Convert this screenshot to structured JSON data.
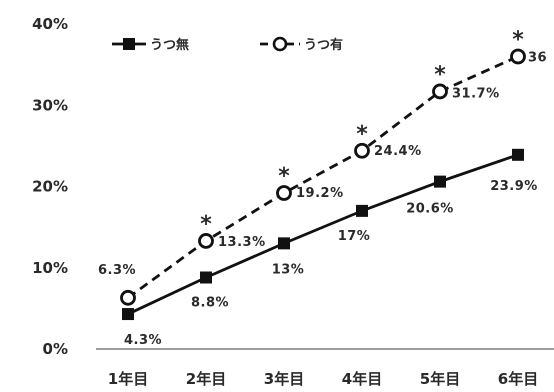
{
  "chart_data": {
    "type": "line",
    "categories": [
      "1年目",
      "2年目",
      "3年目",
      "4年目",
      "5年目",
      "6年目"
    ],
    "series": [
      {
        "name": "うつ無",
        "values": [
          4.3,
          8.8,
          13,
          17,
          20.6,
          23.9
        ],
        "labels": [
          "4.3%",
          "8.8%",
          "13%",
          "17%",
          "20.6%",
          "23.9%"
        ],
        "style": "solid",
        "marker": "filled-square"
      },
      {
        "name": "うつ有",
        "values": [
          6.3,
          13.3,
          19.2,
          24.4,
          31.7,
          36
        ],
        "labels": [
          "6.3%",
          "13.3%",
          "19.2%",
          "24.4%",
          "31.7%",
          "36"
        ],
        "style": "dashed",
        "marker": "open-circle"
      }
    ],
    "significance_marker": "*",
    "significant": [
      false,
      true,
      true,
      true,
      true,
      true
    ],
    "yticks": [
      "0%",
      "10%",
      "20%",
      "30%",
      "40%"
    ],
    "ylim": [
      0,
      40
    ],
    "grid": false,
    "legend_position": "top-left",
    "colors": {
      "line": "#111111",
      "text": "#2a2a2a",
      "background": "#ffffff"
    }
  }
}
